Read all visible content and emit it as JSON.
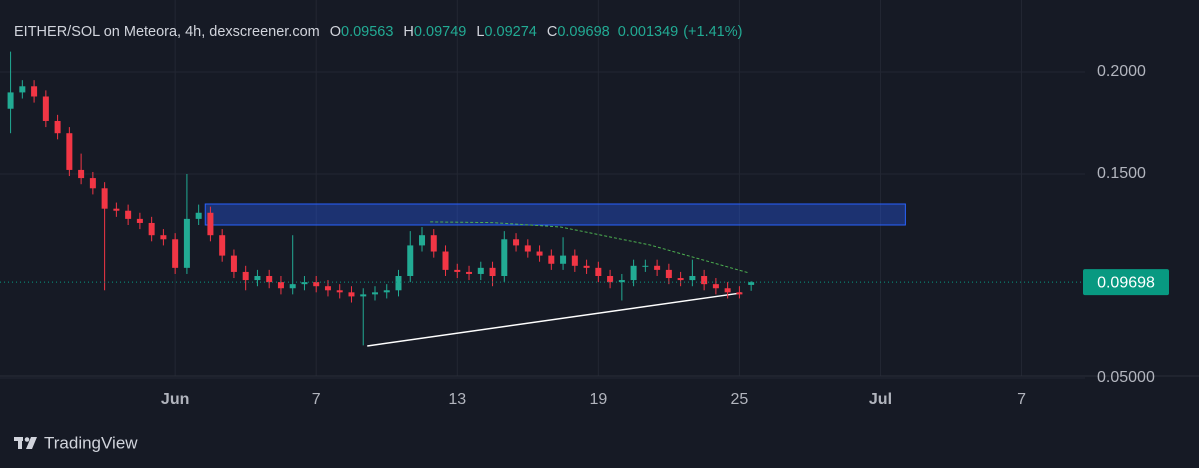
{
  "chart_data": {
    "type": "candlestick",
    "title": "EITHER/SOL on Meteora, 4h, dexscreener.com",
    "ohlc": [
      {
        "label": "O",
        "value": 0.09563
      },
      {
        "label": "H",
        "value": 0.09749
      },
      {
        "label": "L",
        "value": 0.09274
      },
      {
        "label": "C",
        "value": 0.09698
      }
    ],
    "change": 0.001349,
    "change_label": "(+1.41%)",
    "brand": "TradingView",
    "up_color": "#22ab94",
    "down_color": "#f23645",
    "xlim": [
      -6.45,
      39.7
    ],
    "xticks": [
      {
        "value": 1,
        "label": "Jun"
      },
      7,
      13,
      19,
      25,
      {
        "value": 31,
        "label": "Jul"
      },
      {
        "value": 37,
        "label": "7"
      }
    ],
    "ylim": [
      0.05,
      0.2353
    ],
    "yticks": [
      {
        "value": 0.05,
        "label": "0.05000"
      },
      {
        "value": 0.15,
        "label": "0.1500"
      },
      {
        "value": 0.2,
        "label": "0.2000"
      }
    ],
    "grid": true,
    "x": [
      -6,
      -5.5,
      -5,
      -4.5,
      -4,
      -3.5,
      -3,
      -2.5,
      -2,
      -1.5,
      -1,
      -0.5,
      0,
      0.5,
      1,
      1.5,
      2,
      2.5,
      3,
      3.5,
      4,
      4.5,
      5,
      5.5,
      6,
      6.5,
      7,
      7.5,
      8,
      8.5,
      9,
      9.5,
      10,
      10.5,
      11,
      11.5,
      12,
      12.5,
      13,
      13.5,
      14,
      14.5,
      15,
      15.5,
      16,
      16.5,
      17,
      17.5,
      18,
      18.5,
      19,
      19.5,
      20,
      20.5,
      21,
      21.5,
      22,
      22.5,
      23,
      23.5,
      24,
      24.5,
      25,
      25.5
    ],
    "open": [
      0.182,
      0.19,
      0.193,
      0.188,
      0.176,
      0.17,
      0.152,
      0.148,
      0.143,
      0.133,
      0.132,
      0.128,
      0.126,
      0.12,
      0.118,
      0.104,
      0.128,
      0.131,
      0.12,
      0.11,
      0.102,
      0.098,
      0.1,
      0.097,
      0.094,
      0.096,
      0.097,
      0.095,
      0.093,
      0.092,
      0.09,
      0.091,
      0.092,
      0.093,
      0.1,
      0.115,
      0.12,
      0.112,
      0.103,
      0.102,
      0.101,
      0.104,
      0.1,
      0.118,
      0.115,
      0.112,
      0.11,
      0.106,
      0.11,
      0.105,
      0.104,
      0.1,
      0.097,
      0.098,
      0.105,
      0.105,
      0.103,
      0.099,
      0.098,
      0.1,
      0.096,
      0.094,
      0.092,
      0.09563
    ],
    "high": [
      0.21,
      0.196,
      0.196,
      0.191,
      0.179,
      0.173,
      0.16,
      0.151,
      0.146,
      0.136,
      0.135,
      0.131,
      0.129,
      0.123,
      0.121,
      0.15,
      0.135,
      0.134,
      0.123,
      0.113,
      0.105,
      0.103,
      0.103,
      0.1,
      0.12,
      0.1,
      0.1,
      0.098,
      0.096,
      0.095,
      0.094,
      0.095,
      0.096,
      0.103,
      0.122,
      0.124,
      0.123,
      0.115,
      0.106,
      0.105,
      0.107,
      0.107,
      0.122,
      0.121,
      0.118,
      0.115,
      0.113,
      0.119,
      0.113,
      0.108,
      0.107,
      0.103,
      0.101,
      0.108,
      0.108,
      0.108,
      0.106,
      0.102,
      0.108,
      0.103,
      0.099,
      0.097,
      0.095,
      0.09749
    ],
    "low": [
      0.17,
      0.187,
      0.185,
      0.173,
      0.167,
      0.149,
      0.145,
      0.14,
      0.093,
      0.129,
      0.125,
      0.123,
      0.117,
      0.115,
      0.101,
      0.101,
      0.125,
      0.117,
      0.107,
      0.099,
      0.093,
      0.095,
      0.094,
      0.091,
      0.091,
      0.093,
      0.092,
      0.09,
      0.089,
      0.087,
      0.066,
      0.088,
      0.089,
      0.09,
      0.097,
      0.112,
      0.109,
      0.1,
      0.099,
      0.098,
      0.098,
      0.095,
      0.097,
      0.112,
      0.109,
      0.107,
      0.103,
      0.103,
      0.102,
      0.101,
      0.097,
      0.094,
      0.088,
      0.095,
      0.102,
      0.1,
      0.096,
      0.095,
      0.095,
      0.093,
      0.091,
      0.089,
      0.089,
      0.09274
    ],
    "close": [
      0.19,
      0.193,
      0.188,
      0.176,
      0.17,
      0.152,
      0.148,
      0.143,
      0.133,
      0.132,
      0.128,
      0.126,
      0.12,
      0.118,
      0.104,
      0.128,
      0.131,
      0.12,
      0.11,
      0.102,
      0.098,
      0.1,
      0.097,
      0.094,
      0.096,
      0.097,
      0.095,
      0.093,
      0.092,
      0.09,
      0.091,
      0.092,
      0.093,
      0.1,
      0.115,
      0.12,
      0.112,
      0.103,
      0.102,
      0.101,
      0.104,
      0.1,
      0.118,
      0.115,
      0.112,
      0.11,
      0.106,
      0.11,
      0.105,
      0.104,
      0.1,
      0.097,
      0.098,
      0.105,
      0.105,
      0.103,
      0.099,
      0.098,
      0.1,
      0.096,
      0.094,
      0.092,
      0.091,
      0.09698
    ],
    "drawings": {
      "rectangle": {
        "x": [
          2.28,
          32.06
        ],
        "y": [
          0.125,
          0.1353
        ],
        "color": "#2962ff"
      },
      "trendline": {
        "x": [
          9.17,
          25.08
        ],
        "y": [
          0.0657,
          0.0917
        ],
        "color": "#ffffff"
      },
      "curve": {
        "x": [
          11.85,
          14.5,
          17.4,
          21.2,
          25.4
        ],
        "y": [
          0.1265,
          0.1262,
          0.124,
          0.1152,
          0.1015
        ],
        "color": "#4caf50"
      }
    },
    "price_label_color": "#089981"
  }
}
